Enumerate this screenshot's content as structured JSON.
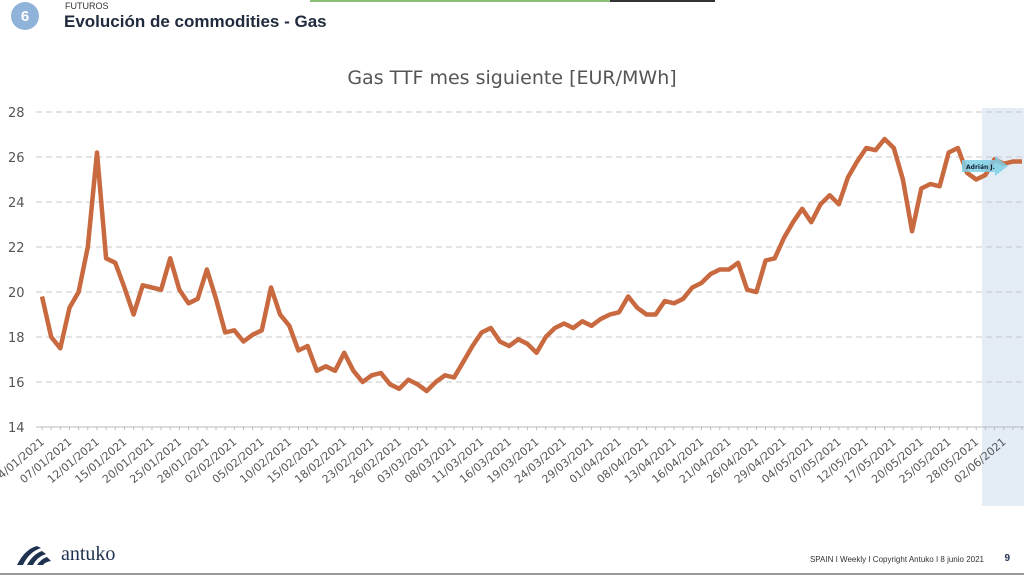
{
  "header": {
    "section_number": "6",
    "section": "FUTUROS",
    "title": "Evolución de commodities - Gas"
  },
  "colors": {
    "line": "#c8693f",
    "grid": "#c8c8c8",
    "forecast_shade": "#e4ecf6",
    "badge": "#8fb3d9",
    "annotation": "#7fd0e6"
  },
  "annotation": {
    "label": "Adrián J.",
    "icon": "arrow-right-icon"
  },
  "chart_data": {
    "type": "line",
    "title": "Gas TTF mes siguiente [EUR/MWh]",
    "xlabel": "",
    "ylabel": "",
    "ylim": [
      14,
      28
    ],
    "yticks": [
      14,
      16,
      18,
      20,
      22,
      24,
      26,
      28
    ],
    "grid": true,
    "x_tick_labels": [
      "04/01/2021",
      "07/01/2021",
      "12/01/2021",
      "15/01/2021",
      "20/01/2021",
      "25/01/2021",
      "28/01/2021",
      "02/02/2021",
      "05/02/2021",
      "10/02/2021",
      "15/02/2021",
      "18/02/2021",
      "23/02/2021",
      "26/02/2021",
      "03/03/2021",
      "08/03/2021",
      "11/03/2021",
      "16/03/2021",
      "19/03/2021",
      "24/03/2021",
      "29/03/2021",
      "01/04/2021",
      "08/04/2021",
      "13/04/2021",
      "16/04/2021",
      "21/04/2021",
      "26/04/2021",
      "29/04/2021",
      "04/05/2021",
      "07/05/2021",
      "12/05/2021",
      "17/05/2021",
      "20/05/2021",
      "25/05/2021",
      "28/05/2021",
      "02/06/2021"
    ],
    "values": [
      19.8,
      18.0,
      17.5,
      19.3,
      20.0,
      22.0,
      26.2,
      21.5,
      21.3,
      20.2,
      19.0,
      20.3,
      20.2,
      20.1,
      21.5,
      20.1,
      19.5,
      19.7,
      21.0,
      19.7,
      18.2,
      18.3,
      17.8,
      18.1,
      18.3,
      20.2,
      19.0,
      18.5,
      17.4,
      17.6,
      16.5,
      16.7,
      16.5,
      17.3,
      16.5,
      16.0,
      16.3,
      16.4,
      15.9,
      15.7,
      16.1,
      15.9,
      15.6,
      16.0,
      16.3,
      16.2,
      16.9,
      17.6,
      18.2,
      18.4,
      17.8,
      17.6,
      17.9,
      17.7,
      17.3,
      18.0,
      18.4,
      18.6,
      18.4,
      18.7,
      18.5,
      18.8,
      19.0,
      19.1,
      19.8,
      19.3,
      19.0,
      19.0,
      19.6,
      19.5,
      19.7,
      20.2,
      20.4,
      20.8,
      21.0,
      21.0,
      21.3,
      20.1,
      20.0,
      21.4,
      21.5,
      22.4,
      23.1,
      23.7,
      23.1,
      23.9,
      24.3,
      23.9,
      25.1,
      25.8,
      26.4,
      26.3,
      26.8,
      26.4,
      25.0,
      22.7,
      24.6,
      24.8,
      24.7,
      26.2,
      26.4,
      25.3,
      25.0,
      25.2,
      25.9,
      25.7,
      25.8,
      25.8
    ]
  },
  "footer": {
    "logo_text": "antuko",
    "text": "SPAIN I Weekly I Copyright Antuko I 8 junio 2021",
    "page": "9"
  }
}
